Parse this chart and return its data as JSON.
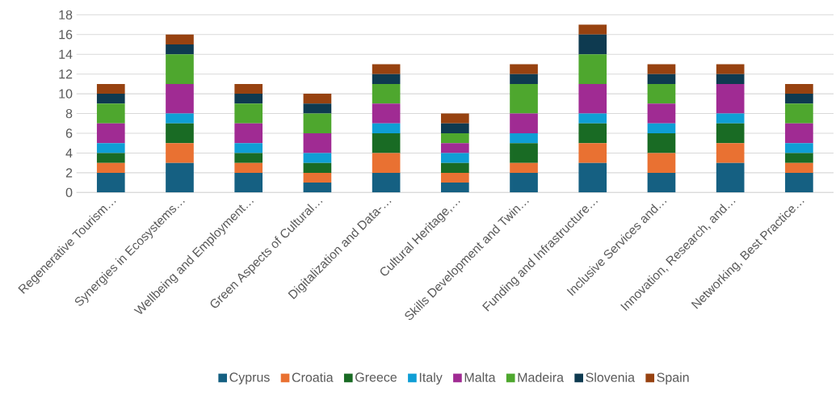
{
  "chart_data": {
    "type": "bar",
    "stacked": true,
    "grid": "y",
    "legend": "bottom",
    "categories": [
      "Regenerative Tourism…",
      "Synergies in Ecosystems…",
      "Wellbeing and Employment…",
      "Green Aspects of Cultural…",
      "Digitalization and Data-…",
      "Cultural Heritage,…",
      "Skills Development and Twin…",
      "Funding and Infrastructure…",
      "Inclusive Services and…",
      "Innovation, Research, and…",
      "Networking, Best Practice…"
    ],
    "ylim": [
      0,
      18
    ],
    "yticks": [
      0,
      2,
      4,
      6,
      8,
      10,
      12,
      14,
      16,
      18
    ],
    "series": [
      {
        "name": "Cyprus",
        "color": "#156082",
        "values": [
          2,
          3,
          2,
          1,
          2,
          1,
          2,
          3,
          2,
          3,
          2
        ]
      },
      {
        "name": "Croatia",
        "color": "#e97132",
        "values": [
          1,
          2,
          1,
          1,
          2,
          1,
          1,
          2,
          2,
          2,
          1
        ]
      },
      {
        "name": "Greece",
        "color": "#196b24",
        "values": [
          1,
          2,
          1,
          1,
          2,
          1,
          2,
          2,
          2,
          2,
          1
        ]
      },
      {
        "name": "Italy",
        "color": "#0f9ed5",
        "values": [
          1,
          1,
          1,
          1,
          1,
          1,
          1,
          1,
          1,
          1,
          1
        ]
      },
      {
        "name": "Malta",
        "color": "#a02b93",
        "values": [
          2,
          3,
          2,
          2,
          2,
          1,
          2,
          3,
          2,
          3,
          2
        ]
      },
      {
        "name": "Madeira",
        "color": "#4ea72e",
        "values": [
          2,
          3,
          2,
          2,
          2,
          1,
          3,
          3,
          2,
          0,
          2
        ]
      },
      {
        "name": "Slovenia",
        "color": "#0e3a50",
        "values": [
          1,
          1,
          1,
          1,
          1,
          1,
          1,
          2,
          1,
          1,
          1
        ]
      },
      {
        "name": "Spain",
        "color": "#974210",
        "values": [
          1,
          1,
          1,
          1,
          1,
          1,
          1,
          1,
          1,
          1,
          1
        ]
      }
    ]
  }
}
